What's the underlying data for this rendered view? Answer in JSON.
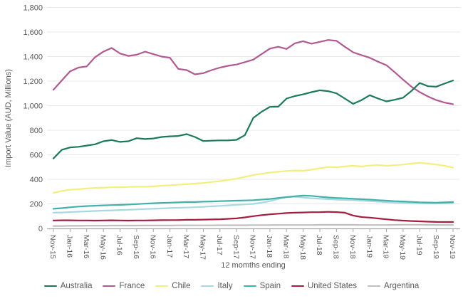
{
  "chart_data": {
    "type": "line",
    "title": "",
    "ylabel": "Import Value (AUD, Millions)",
    "xlabel": "12 momths ending",
    "ylim": [
      0,
      1800
    ],
    "ytick_step": 200,
    "ytick_labels": [
      "0",
      "200",
      "400",
      "600",
      "800",
      "1,000",
      "1,200",
      "1,400",
      "1,600",
      "1,800"
    ],
    "grid": "horizontal",
    "legend_position": "bottom",
    "grid_color": "#e9e9e9",
    "axis_color": "#a6a6a6",
    "text_color": "#595959",
    "x_tick_labels": [
      "Nov-15",
      "Jan-16",
      "Mar-16",
      "May-16",
      "Jul-16",
      "Sep-16",
      "Nov-16",
      "Jan-17",
      "Mar-17",
      "May-17",
      "Jul-17",
      "Sep-17",
      "Nov-17",
      "Jan-18",
      "Mar-18",
      "May-18",
      "Jul-18",
      "Sep-18",
      "Nov-18",
      "Jan-19",
      "Mar-19",
      "May-19",
      "Jul-19",
      "Sep-19",
      "Nov-19"
    ],
    "months": [
      "Nov-15",
      "Dec-15",
      "Jan-16",
      "Feb-16",
      "Mar-16",
      "Apr-16",
      "May-16",
      "Jun-16",
      "Jul-16",
      "Aug-16",
      "Sep-16",
      "Oct-16",
      "Nov-16",
      "Dec-16",
      "Jan-17",
      "Feb-17",
      "Mar-17",
      "Apr-17",
      "May-17",
      "Jun-17",
      "Jul-17",
      "Aug-17",
      "Sep-17",
      "Oct-17",
      "Nov-17",
      "Dec-17",
      "Jan-18",
      "Feb-18",
      "Mar-18",
      "Apr-18",
      "May-18",
      "Jun-18",
      "Jul-18",
      "Aug-18",
      "Sep-18",
      "Oct-18",
      "Nov-18",
      "Dec-18",
      "Jan-19",
      "Feb-19",
      "Mar-19",
      "Apr-19",
      "May-19",
      "Jun-19",
      "Jul-19",
      "Aug-19",
      "Sep-19",
      "Oct-19",
      "Nov-19"
    ],
    "series": [
      {
        "name": "Australia",
        "color": "#1a7a5a",
        "values": [
          570,
          640,
          660,
          665,
          675,
          685,
          710,
          720,
          705,
          710,
          735,
          728,
          733,
          745,
          750,
          753,
          768,
          745,
          712,
          715,
          717,
          717,
          722,
          760,
          900,
          950,
          990,
          992,
          1058,
          1078,
          1092,
          1110,
          1125,
          1118,
          1100,
          1058,
          1015,
          1045,
          1085,
          1058,
          1035,
          1048,
          1065,
          1120,
          1185,
          1158,
          1155,
          1180,
          1205
        ]
      },
      {
        "name": "France",
        "color": "#b15a92",
        "values": [
          1130,
          1205,
          1280,
          1310,
          1320,
          1395,
          1440,
          1470,
          1425,
          1405,
          1415,
          1440,
          1420,
          1400,
          1390,
          1300,
          1290,
          1255,
          1265,
          1290,
          1310,
          1325,
          1335,
          1355,
          1375,
          1420,
          1465,
          1480,
          1462,
          1508,
          1525,
          1505,
          1520,
          1535,
          1528,
          1480,
          1435,
          1412,
          1390,
          1358,
          1330,
          1272,
          1212,
          1155,
          1110,
          1075,
          1045,
          1025,
          1012
        ]
      },
      {
        "name": "Chile",
        "color": "#f3ef7d",
        "values": [
          290,
          305,
          315,
          320,
          325,
          330,
          332,
          335,
          335,
          338,
          340,
          340,
          342,
          348,
          352,
          356,
          360,
          365,
          370,
          378,
          385,
          395,
          405,
          420,
          435,
          445,
          455,
          462,
          468,
          472,
          470,
          478,
          490,
          500,
          498,
          505,
          510,
          505,
          512,
          516,
          510,
          515,
          520,
          528,
          535,
          528,
          520,
          510,
          495
        ]
      },
      {
        "name": "Italy",
        "color": "#a9d7e2",
        "values": [
          128,
          130,
          133,
          136,
          139,
          142,
          145,
          147,
          150,
          152,
          155,
          158,
          160,
          163,
          166,
          168,
          170,
          173,
          176,
          180,
          184,
          188,
          192,
          196,
          200,
          210,
          222,
          240,
          255,
          258,
          252,
          246,
          242,
          238,
          235,
          232,
          230,
          226,
          222,
          218,
          214,
          210,
          208,
          206,
          204,
          203,
          203,
          204,
          205
        ]
      },
      {
        "name": "Spain",
        "color": "#43b0a9",
        "values": [
          160,
          165,
          172,
          178,
          182,
          185,
          188,
          190,
          192,
          195,
          198,
          202,
          205,
          208,
          210,
          212,
          215,
          215,
          218,
          220,
          222,
          224,
          226,
          228,
          230,
          235,
          240,
          248,
          255,
          262,
          268,
          265,
          258,
          252,
          248,
          245,
          242,
          238,
          235,
          230,
          226,
          222,
          220,
          216,
          213,
          211,
          210,
          212,
          215
        ]
      },
      {
        "name": "United States",
        "color": "#a41e41",
        "values": [
          65,
          66,
          66,
          65,
          65,
          64,
          65,
          66,
          65,
          64,
          65,
          65,
          66,
          67,
          68,
          68,
          70,
          70,
          72,
          73,
          75,
          78,
          82,
          90,
          100,
          108,
          115,
          120,
          125,
          128,
          130,
          132,
          133,
          135,
          133,
          128,
          105,
          93,
          88,
          81,
          74,
          68,
          64,
          60,
          58,
          55,
          53,
          52,
          52
        ]
      },
      {
        "name": "Argentina",
        "color": "#bfbfbf",
        "values": [
          20,
          20,
          21,
          21,
          22,
          22,
          22,
          23,
          23,
          23,
          23,
          24,
          24,
          24,
          24,
          25,
          25,
          25,
          25,
          25,
          26,
          26,
          26,
          26,
          27,
          27,
          27,
          28,
          28,
          28,
          28,
          28,
          29,
          29,
          29,
          29,
          29,
          28,
          28,
          28,
          28,
          29,
          30,
          30,
          30,
          29,
          28,
          28,
          28
        ]
      }
    ]
  }
}
